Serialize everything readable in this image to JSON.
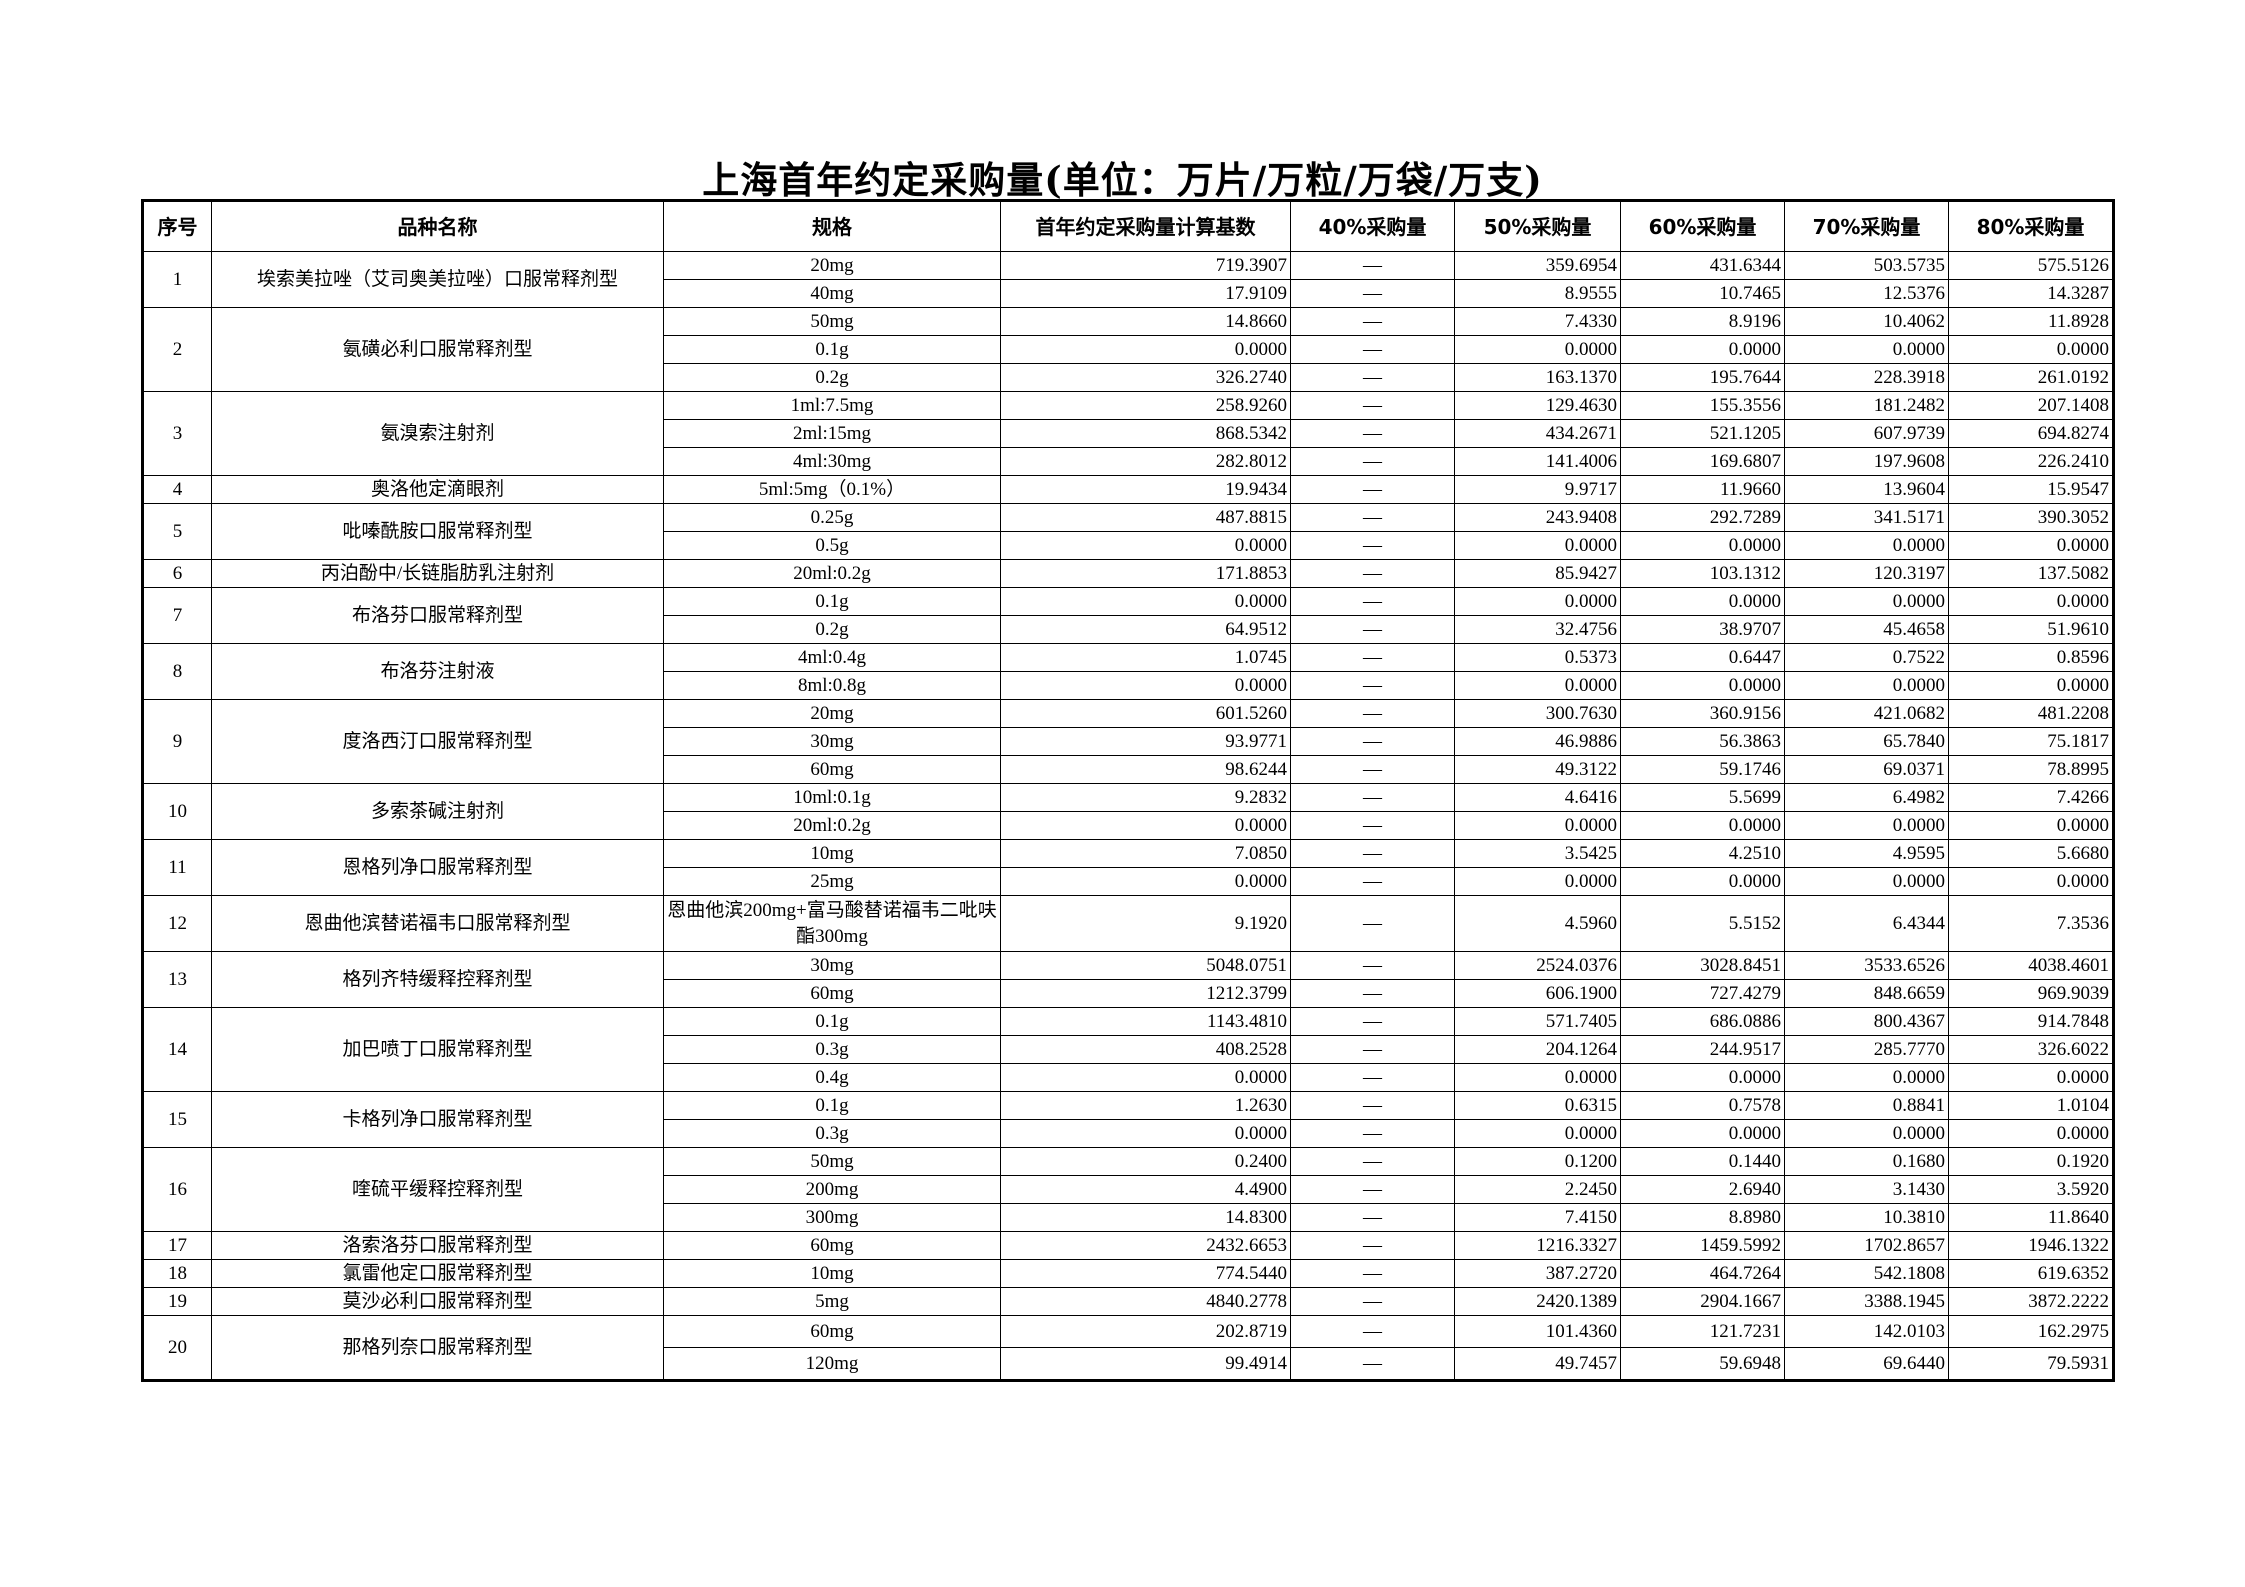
{
  "title": "上海首年约定采购量(单位：万片/万粒/万袋/万支)",
  "columns": [
    "序号",
    "品种名称",
    "规格",
    "首年约定采购量计算基数",
    "40%采购量",
    "50%采购量",
    "60%采购量",
    "70%采购量",
    "80%采购量"
  ],
  "dash": "—",
  "items": [
    {
      "no": "1",
      "name": "埃索美拉唑（艾司奥美拉唑）口服常释剂型",
      "specs": [
        [
          "20mg",
          "719.3907",
          "359.6954",
          "431.6344",
          "503.5735",
          "575.5126"
        ],
        [
          "40mg",
          "17.9109",
          "8.9555",
          "10.7465",
          "12.5376",
          "14.3287"
        ]
      ]
    },
    {
      "no": "2",
      "name": "氨磺必利口服常释剂型",
      "specs": [
        [
          "50mg",
          "14.8660",
          "7.4330",
          "8.9196",
          "10.4062",
          "11.8928"
        ],
        [
          "0.1g",
          "0.0000",
          "0.0000",
          "0.0000",
          "0.0000",
          "0.0000"
        ],
        [
          "0.2g",
          "326.2740",
          "163.1370",
          "195.7644",
          "228.3918",
          "261.0192"
        ]
      ]
    },
    {
      "no": "3",
      "name": "氨溴索注射剂",
      "specs": [
        [
          "1ml:7.5mg",
          "258.9260",
          "129.4630",
          "155.3556",
          "181.2482",
          "207.1408"
        ],
        [
          "2ml:15mg",
          "868.5342",
          "434.2671",
          "521.1205",
          "607.9739",
          "694.8274"
        ],
        [
          "4ml:30mg",
          "282.8012",
          "141.4006",
          "169.6807",
          "197.9608",
          "226.2410"
        ]
      ]
    },
    {
      "no": "4",
      "name": "奥洛他定滴眼剂",
      "specs": [
        [
          "5ml:5mg（0.1%）",
          "19.9434",
          "9.9717",
          "11.9660",
          "13.9604",
          "15.9547"
        ]
      ]
    },
    {
      "no": "5",
      "name": "吡嗪酰胺口服常释剂型",
      "specs": [
        [
          "0.25g",
          "487.8815",
          "243.9408",
          "292.7289",
          "341.5171",
          "390.3052"
        ],
        [
          "0.5g",
          "0.0000",
          "0.0000",
          "0.0000",
          "0.0000",
          "0.0000"
        ]
      ]
    },
    {
      "no": "6",
      "name": "丙泊酚中/长链脂肪乳注射剂",
      "specs": [
        [
          "20ml:0.2g",
          "171.8853",
          "85.9427",
          "103.1312",
          "120.3197",
          "137.5082"
        ]
      ]
    },
    {
      "no": "7",
      "name": "布洛芬口服常释剂型",
      "specs": [
        [
          "0.1g",
          "0.0000",
          "0.0000",
          "0.0000",
          "0.0000",
          "0.0000"
        ],
        [
          "0.2g",
          "64.9512",
          "32.4756",
          "38.9707",
          "45.4658",
          "51.9610"
        ]
      ]
    },
    {
      "no": "8",
      "name": "布洛芬注射液",
      "specs": [
        [
          "4ml:0.4g",
          "1.0745",
          "0.5373",
          "0.6447",
          "0.7522",
          "0.8596"
        ],
        [
          "8ml:0.8g",
          "0.0000",
          "0.0000",
          "0.0000",
          "0.0000",
          "0.0000"
        ]
      ]
    },
    {
      "no": "9",
      "name": "度洛西汀口服常释剂型",
      "specs": [
        [
          "20mg",
          "601.5260",
          "300.7630",
          "360.9156",
          "421.0682",
          "481.2208"
        ],
        [
          "30mg",
          "93.9771",
          "46.9886",
          "56.3863",
          "65.7840",
          "75.1817"
        ],
        [
          "60mg",
          "98.6244",
          "49.3122",
          "59.1746",
          "69.0371",
          "78.8995"
        ]
      ]
    },
    {
      "no": "10",
      "name": "多索茶碱注射剂",
      "specs": [
        [
          "10ml:0.1g",
          "9.2832",
          "4.6416",
          "5.5699",
          "6.4982",
          "7.4266"
        ],
        [
          "20ml:0.2g",
          "0.0000",
          "0.0000",
          "0.0000",
          "0.0000",
          "0.0000"
        ]
      ]
    },
    {
      "no": "11",
      "name": "恩格列净口服常释剂型",
      "specs": [
        [
          "10mg",
          "7.0850",
          "3.5425",
          "4.2510",
          "4.9595",
          "5.6680"
        ],
        [
          "25mg",
          "0.0000",
          "0.0000",
          "0.0000",
          "0.0000",
          "0.0000"
        ]
      ]
    },
    {
      "no": "12",
      "name": "恩曲他滨替诺福韦口服常释剂型",
      "specs": [
        [
          "恩曲他滨200mg+富马酸替诺福韦二吡呋酯300mg",
          "9.1920",
          "4.5960",
          "5.5152",
          "6.4344",
          "7.3536"
        ]
      ]
    },
    {
      "no": "13",
      "name": "格列齐特缓释控释剂型",
      "specs": [
        [
          "30mg",
          "5048.0751",
          "2524.0376",
          "3028.8451",
          "3533.6526",
          "4038.4601"
        ],
        [
          "60mg",
          "1212.3799",
          "606.1900",
          "727.4279",
          "848.6659",
          "969.9039"
        ]
      ]
    },
    {
      "no": "14",
      "name": "加巴喷丁口服常释剂型",
      "specs": [
        [
          "0.1g",
          "1143.4810",
          "571.7405",
          "686.0886",
          "800.4367",
          "914.7848"
        ],
        [
          "0.3g",
          "408.2528",
          "204.1264",
          "244.9517",
          "285.7770",
          "326.6022"
        ],
        [
          "0.4g",
          "0.0000",
          "0.0000",
          "0.0000",
          "0.0000",
          "0.0000"
        ]
      ]
    },
    {
      "no": "15",
      "name": "卡格列净口服常释剂型",
      "specs": [
        [
          "0.1g",
          "1.2630",
          "0.6315",
          "0.7578",
          "0.8841",
          "1.0104"
        ],
        [
          "0.3g",
          "0.0000",
          "0.0000",
          "0.0000",
          "0.0000",
          "0.0000"
        ]
      ]
    },
    {
      "no": "16",
      "name": "喹硫平缓释控释剂型",
      "specs": [
        [
          "50mg",
          "0.2400",
          "0.1200",
          "0.1440",
          "0.1680",
          "0.1920"
        ],
        [
          "200mg",
          "4.4900",
          "2.2450",
          "2.6940",
          "3.1430",
          "3.5920"
        ],
        [
          "300mg",
          "14.8300",
          "7.4150",
          "8.8980",
          "10.3810",
          "11.8640"
        ]
      ]
    },
    {
      "no": "17",
      "name": "洛索洛芬口服常释剂型",
      "specs": [
        [
          "60mg",
          "2432.6653",
          "1216.3327",
          "1459.5992",
          "1702.8657",
          "1946.1322"
        ]
      ]
    },
    {
      "no": "18",
      "name": "氯雷他定口服常释剂型",
      "specs": [
        [
          "10mg",
          "774.5440",
          "387.2720",
          "464.7264",
          "542.1808",
          "619.6352"
        ]
      ]
    },
    {
      "no": "19",
      "name": "莫沙必利口服常释剂型",
      "specs": [
        [
          "5mg",
          "4840.2778",
          "2420.1389",
          "2904.1667",
          "3388.1945",
          "3872.2222"
        ]
      ]
    },
    {
      "no": "20",
      "name": "那格列奈口服常释剂型",
      "specs": [
        [
          "60mg",
          "202.8719",
          "101.4360",
          "121.7231",
          "142.0103",
          "162.2975"
        ],
        [
          "120mg",
          "99.4914",
          "49.7457",
          "59.6948",
          "69.6440",
          "79.5931"
        ]
      ]
    }
  ]
}
